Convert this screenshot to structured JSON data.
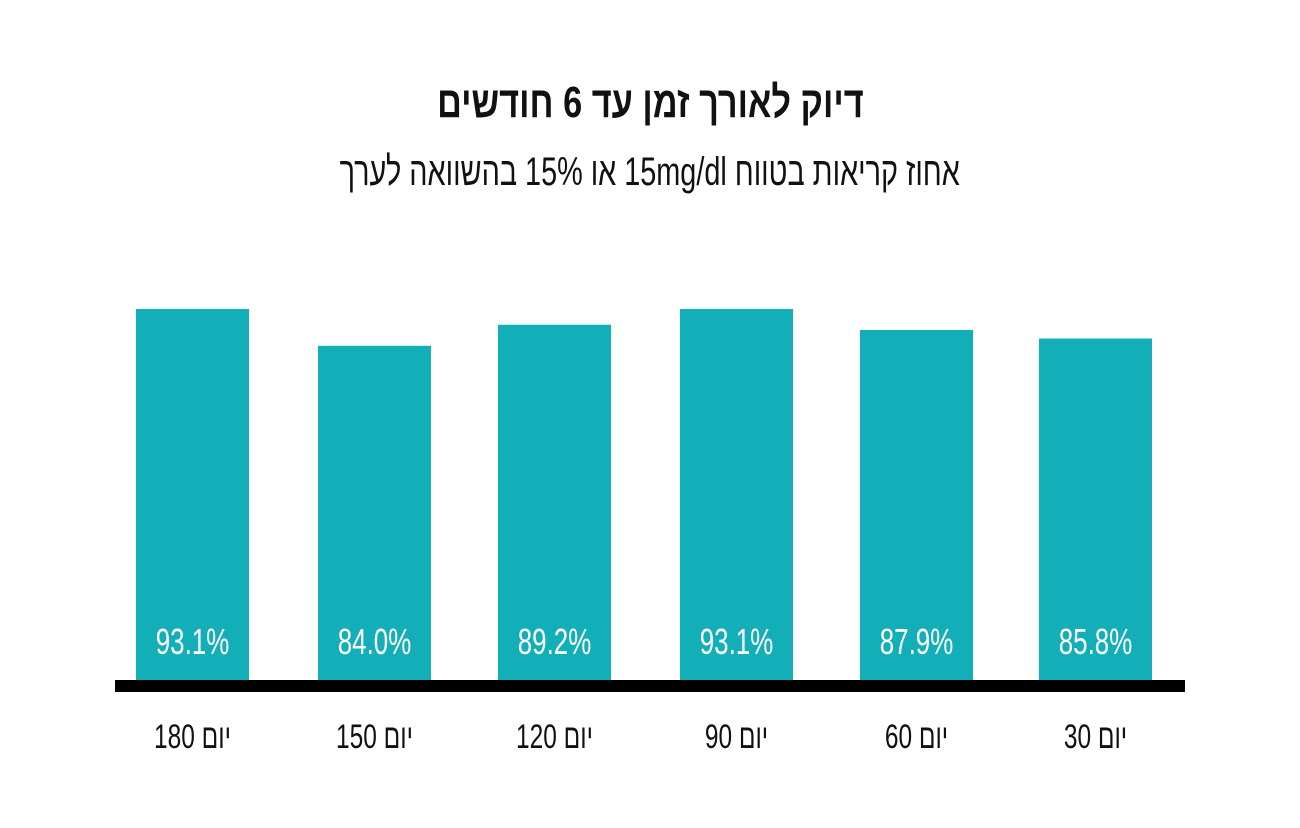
{
  "chart_data": {
    "type": "bar",
    "title": "דיוק לאורך זמן עד 6 חודשים",
    "subtitle": "אחוז קריאות בטווח 15mg/dl או 15% בהשוואה לערך",
    "categories": [
      "יום 180",
      "יום 150",
      "יום 120",
      "יום 90",
      "יום 60",
      "יום 30"
    ],
    "values": [
      93.1,
      84.0,
      89.2,
      93.1,
      87.9,
      85.8
    ],
    "value_labels": [
      "93.1%",
      "84.0%",
      "89.2%",
      "93.1%",
      "87.9%",
      "85.8%"
    ],
    "xlabel": "",
    "ylabel": "",
    "ylim": [
      0,
      100
    ],
    "grid": false,
    "bar_color": "#13afb9",
    "axis_color": "#000000"
  }
}
